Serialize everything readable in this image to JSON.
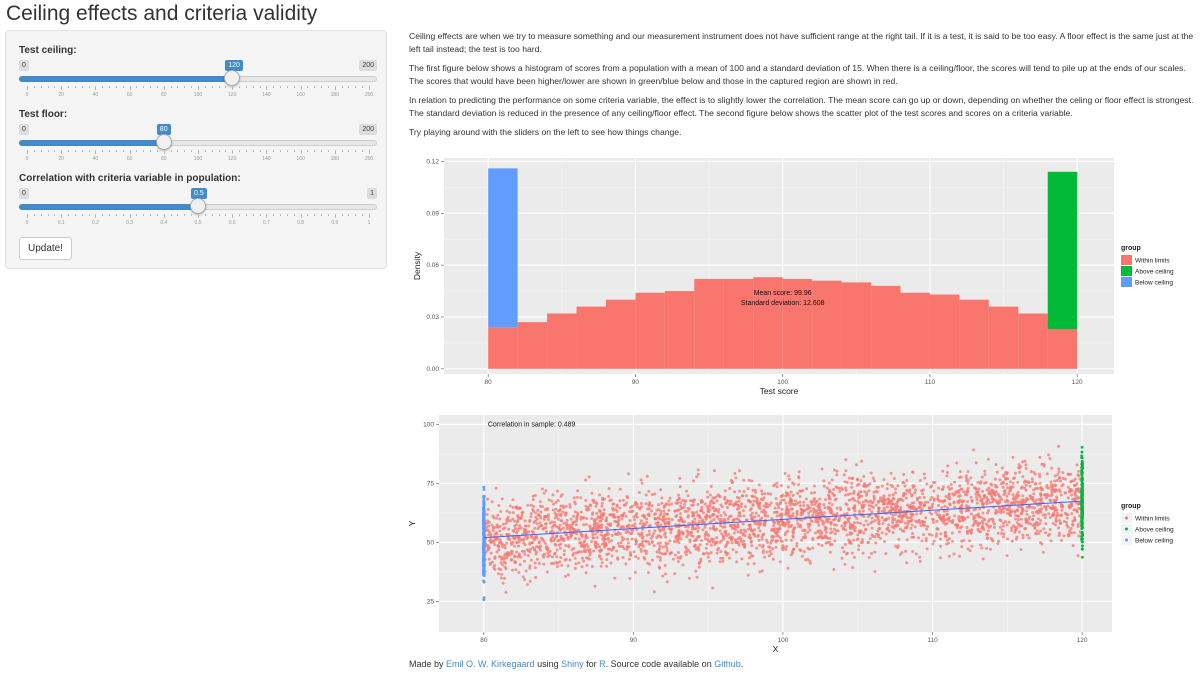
{
  "page": {
    "title": "Ceiling effects and criteria validity"
  },
  "sidebar": {
    "ceiling": {
      "label": "Test ceiling:",
      "min": 0,
      "max": 200,
      "value": 120,
      "min_label": "0",
      "max_label": "200",
      "value_label": "120",
      "ticks": [
        "0",
        "20",
        "40",
        "60",
        "80",
        "100",
        "120",
        "140",
        "160",
        "180",
        "200"
      ]
    },
    "floor": {
      "label": "Test floor:",
      "min": 0,
      "max": 200,
      "value": 80,
      "min_label": "0",
      "max_label": "200",
      "value_label": "80",
      "ticks": [
        "0",
        "20",
        "40",
        "60",
        "80",
        "100",
        "120",
        "140",
        "160",
        "180",
        "200"
      ]
    },
    "correlation": {
      "label": "Correlation with criteria variable in population:",
      "min": 0,
      "max": 1,
      "value": 0.5,
      "min_label": "0",
      "max_label": "1",
      "value_label": "0.5",
      "ticks": [
        "0",
        "0.1",
        "0.2",
        "0.3",
        "0.4",
        "0.5",
        "0.6",
        "0.7",
        "0.8",
        "0.9",
        "1"
      ]
    },
    "update_label": "Update!"
  },
  "description": {
    "p1": "Ceiling effects are when we try to measure something and our measurement instrument does not have sufficient range at the right tail. If it is a test, it is said to be too easy. A floor effect is the same just at the left tail instead; the test is too hard.",
    "p2": "The first figure below shows a histogram of scores from a population with a mean of 100 and a standard deviation of 15. When there is a ceiling/floor, the scores will tend to pile up at the ends of our scales. The scores that would have been higher/lower are shown in green/blue below and those in the captured region are shown in red.",
    "p3": "In relation to predicting the performance on some criteria variable, the effect is to slightly lower the correlation. The mean score can go up or down, depending on whether the celing or floor effect is strongest. The standard deviation is reduced in the presence of any ceiling/floor effect. The second figure below shows the scatter plot of the test scores and scores on a criteria variable.",
    "p4": "Try playing around with the sliders on the left to see how things change."
  },
  "colors": {
    "within": "#f8766d",
    "above": "#00ba38",
    "below": "#619cff",
    "panel": "#ebebeb",
    "grid": "#ffffff",
    "line": "#3366ff"
  },
  "chart_data": [
    {
      "type": "bar",
      "title": "",
      "xlabel": "Test score",
      "ylabel": "Density",
      "xlim": [
        77,
        122.5
      ],
      "ylim": [
        -0.003,
        0.122
      ],
      "xticks": [
        80,
        90,
        100,
        110,
        120
      ],
      "xtick_labels": [
        "80",
        "90",
        "100",
        "110",
        "120"
      ],
      "yticks": [
        0.0,
        0.03,
        0.06,
        0.09,
        0.12
      ],
      "ytick_labels": [
        "0.00",
        "0.03",
        "0.06",
        "0.09",
        "0.12"
      ],
      "bin_width": 2,
      "bins": [
        {
          "x0": 80,
          "y": 0.024,
          "group": "Within limits"
        },
        {
          "x0": 82,
          "y": 0.027,
          "group": "Within limits"
        },
        {
          "x0": 84,
          "y": 0.032,
          "group": "Within limits"
        },
        {
          "x0": 86,
          "y": 0.036,
          "group": "Within limits"
        },
        {
          "x0": 88,
          "y": 0.04,
          "group": "Within limits"
        },
        {
          "x0": 90,
          "y": 0.044,
          "group": "Within limits"
        },
        {
          "x0": 92,
          "y": 0.045,
          "group": "Within limits"
        },
        {
          "x0": 94,
          "y": 0.052,
          "group": "Within limits"
        },
        {
          "x0": 96,
          "y": 0.052,
          "group": "Within limits"
        },
        {
          "x0": 98,
          "y": 0.053,
          "group": "Within limits"
        },
        {
          "x0": 100,
          "y": 0.052,
          "group": "Within limits"
        },
        {
          "x0": 102,
          "y": 0.051,
          "group": "Within limits"
        },
        {
          "x0": 104,
          "y": 0.05,
          "group": "Within limits"
        },
        {
          "x0": 106,
          "y": 0.048,
          "group": "Within limits"
        },
        {
          "x0": 108,
          "y": 0.044,
          "group": "Within limits"
        },
        {
          "x0": 110,
          "y": 0.043,
          "group": "Within limits"
        },
        {
          "x0": 112,
          "y": 0.04,
          "group": "Within limits"
        },
        {
          "x0": 114,
          "y": 0.036,
          "group": "Within limits"
        },
        {
          "x0": 116,
          "y": 0.032,
          "group": "Within limits"
        },
        {
          "x0": 118,
          "y": 0.028,
          "group": "Within limits"
        },
        {
          "x0": 118,
          "y0": 0.023,
          "y": 0.114,
          "group": "Above ceiling"
        },
        {
          "x0": 80,
          "y0": 0.024,
          "y": 0.116,
          "group": "Below ceiling"
        }
      ],
      "annotation_lines": [
        "Mean score: 99.96",
        "Standard deviation: 12.608"
      ],
      "annotation_at": [
        100,
        0.037
      ],
      "legend": {
        "title": "group",
        "position": "right",
        "entries": [
          "Within limits",
          "Above ceiling",
          "Below ceiling"
        ]
      }
    },
    {
      "type": "scatter",
      "title": "",
      "xlabel": "X",
      "ylabel": "Y",
      "xlim": [
        77,
        122
      ],
      "ylim": [
        12,
        104
      ],
      "xticks": [
        80,
        90,
        100,
        110,
        120
      ],
      "xtick_labels": [
        "80",
        "90",
        "100",
        "110",
        "120"
      ],
      "yticks": [
        25,
        50,
        75,
        100
      ],
      "ytick_labels": [
        "25",
        "50",
        "75",
        "100"
      ],
      "regression_line": {
        "x": [
          80,
          120
        ],
        "y": [
          52,
          67.5
        ]
      },
      "annotation": "Correlation in sample: 0.489",
      "annotation_at": [
        80,
        100
      ],
      "legend": {
        "title": "group",
        "position": "right",
        "entries": [
          "Within limits",
          "Above ceiling",
          "Below ceiling"
        ]
      }
    }
  ],
  "footer": {
    "t1": "Made by ",
    "author": "Emil O. W. Kirkegaard",
    "t2": " using ",
    "shiny": "Shiny",
    "t3": " for ",
    "r": "R",
    "t4": ". Source code available on ",
    "github": "Github",
    "t5": "."
  }
}
